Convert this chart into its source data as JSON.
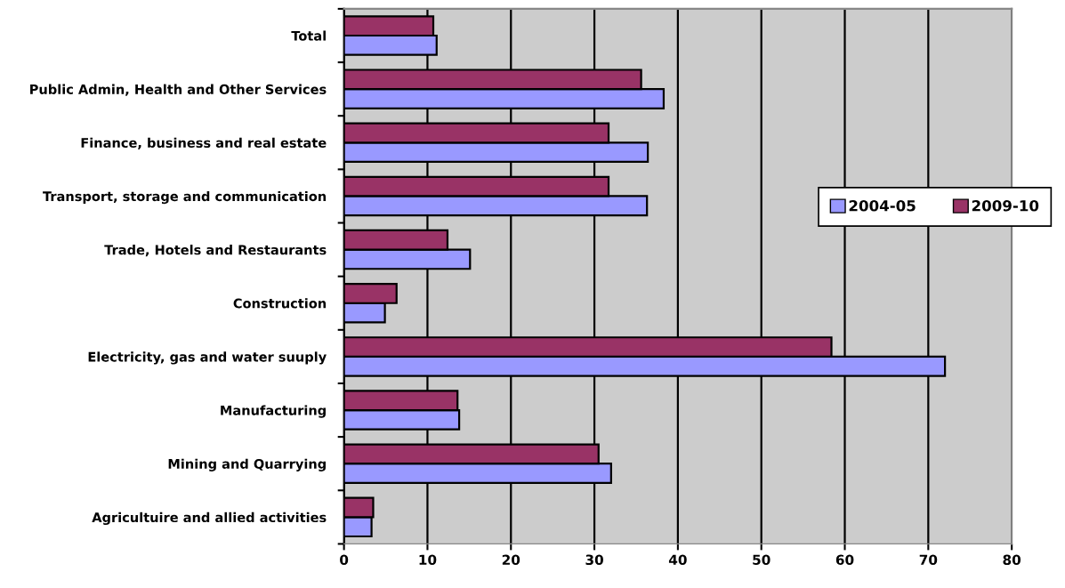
{
  "chart_data": {
    "type": "bar",
    "orientation": "horizontal",
    "categories": [
      "Total",
      "Public Admin, Health and Other Services",
      "Finance, business and real estate",
      "Transport, storage and communication",
      "Trade, Hotels and Restaurants",
      "Construction",
      "Electricity, gas and water suuply",
      "Manufacturing",
      "Mining and Quarrying",
      "Agricultuire and allied activities"
    ],
    "series": [
      {
        "name": "2004-05",
        "color": "#9999ff",
        "values": [
          11.1,
          38.3,
          36.4,
          36.3,
          15.1,
          4.9,
          72.0,
          13.8,
          32.0,
          3.3
        ]
      },
      {
        "name": "2009-10",
        "color": "#993366",
        "values": [
          10.7,
          35.6,
          31.7,
          31.7,
          12.4,
          6.3,
          58.4,
          13.6,
          30.5,
          3.5
        ]
      }
    ],
    "xlim": [
      0,
      80
    ],
    "xticks": [
      0,
      10,
      20,
      30,
      40,
      50,
      60,
      70,
      80
    ],
    "grid": "x",
    "legend": "right"
  }
}
